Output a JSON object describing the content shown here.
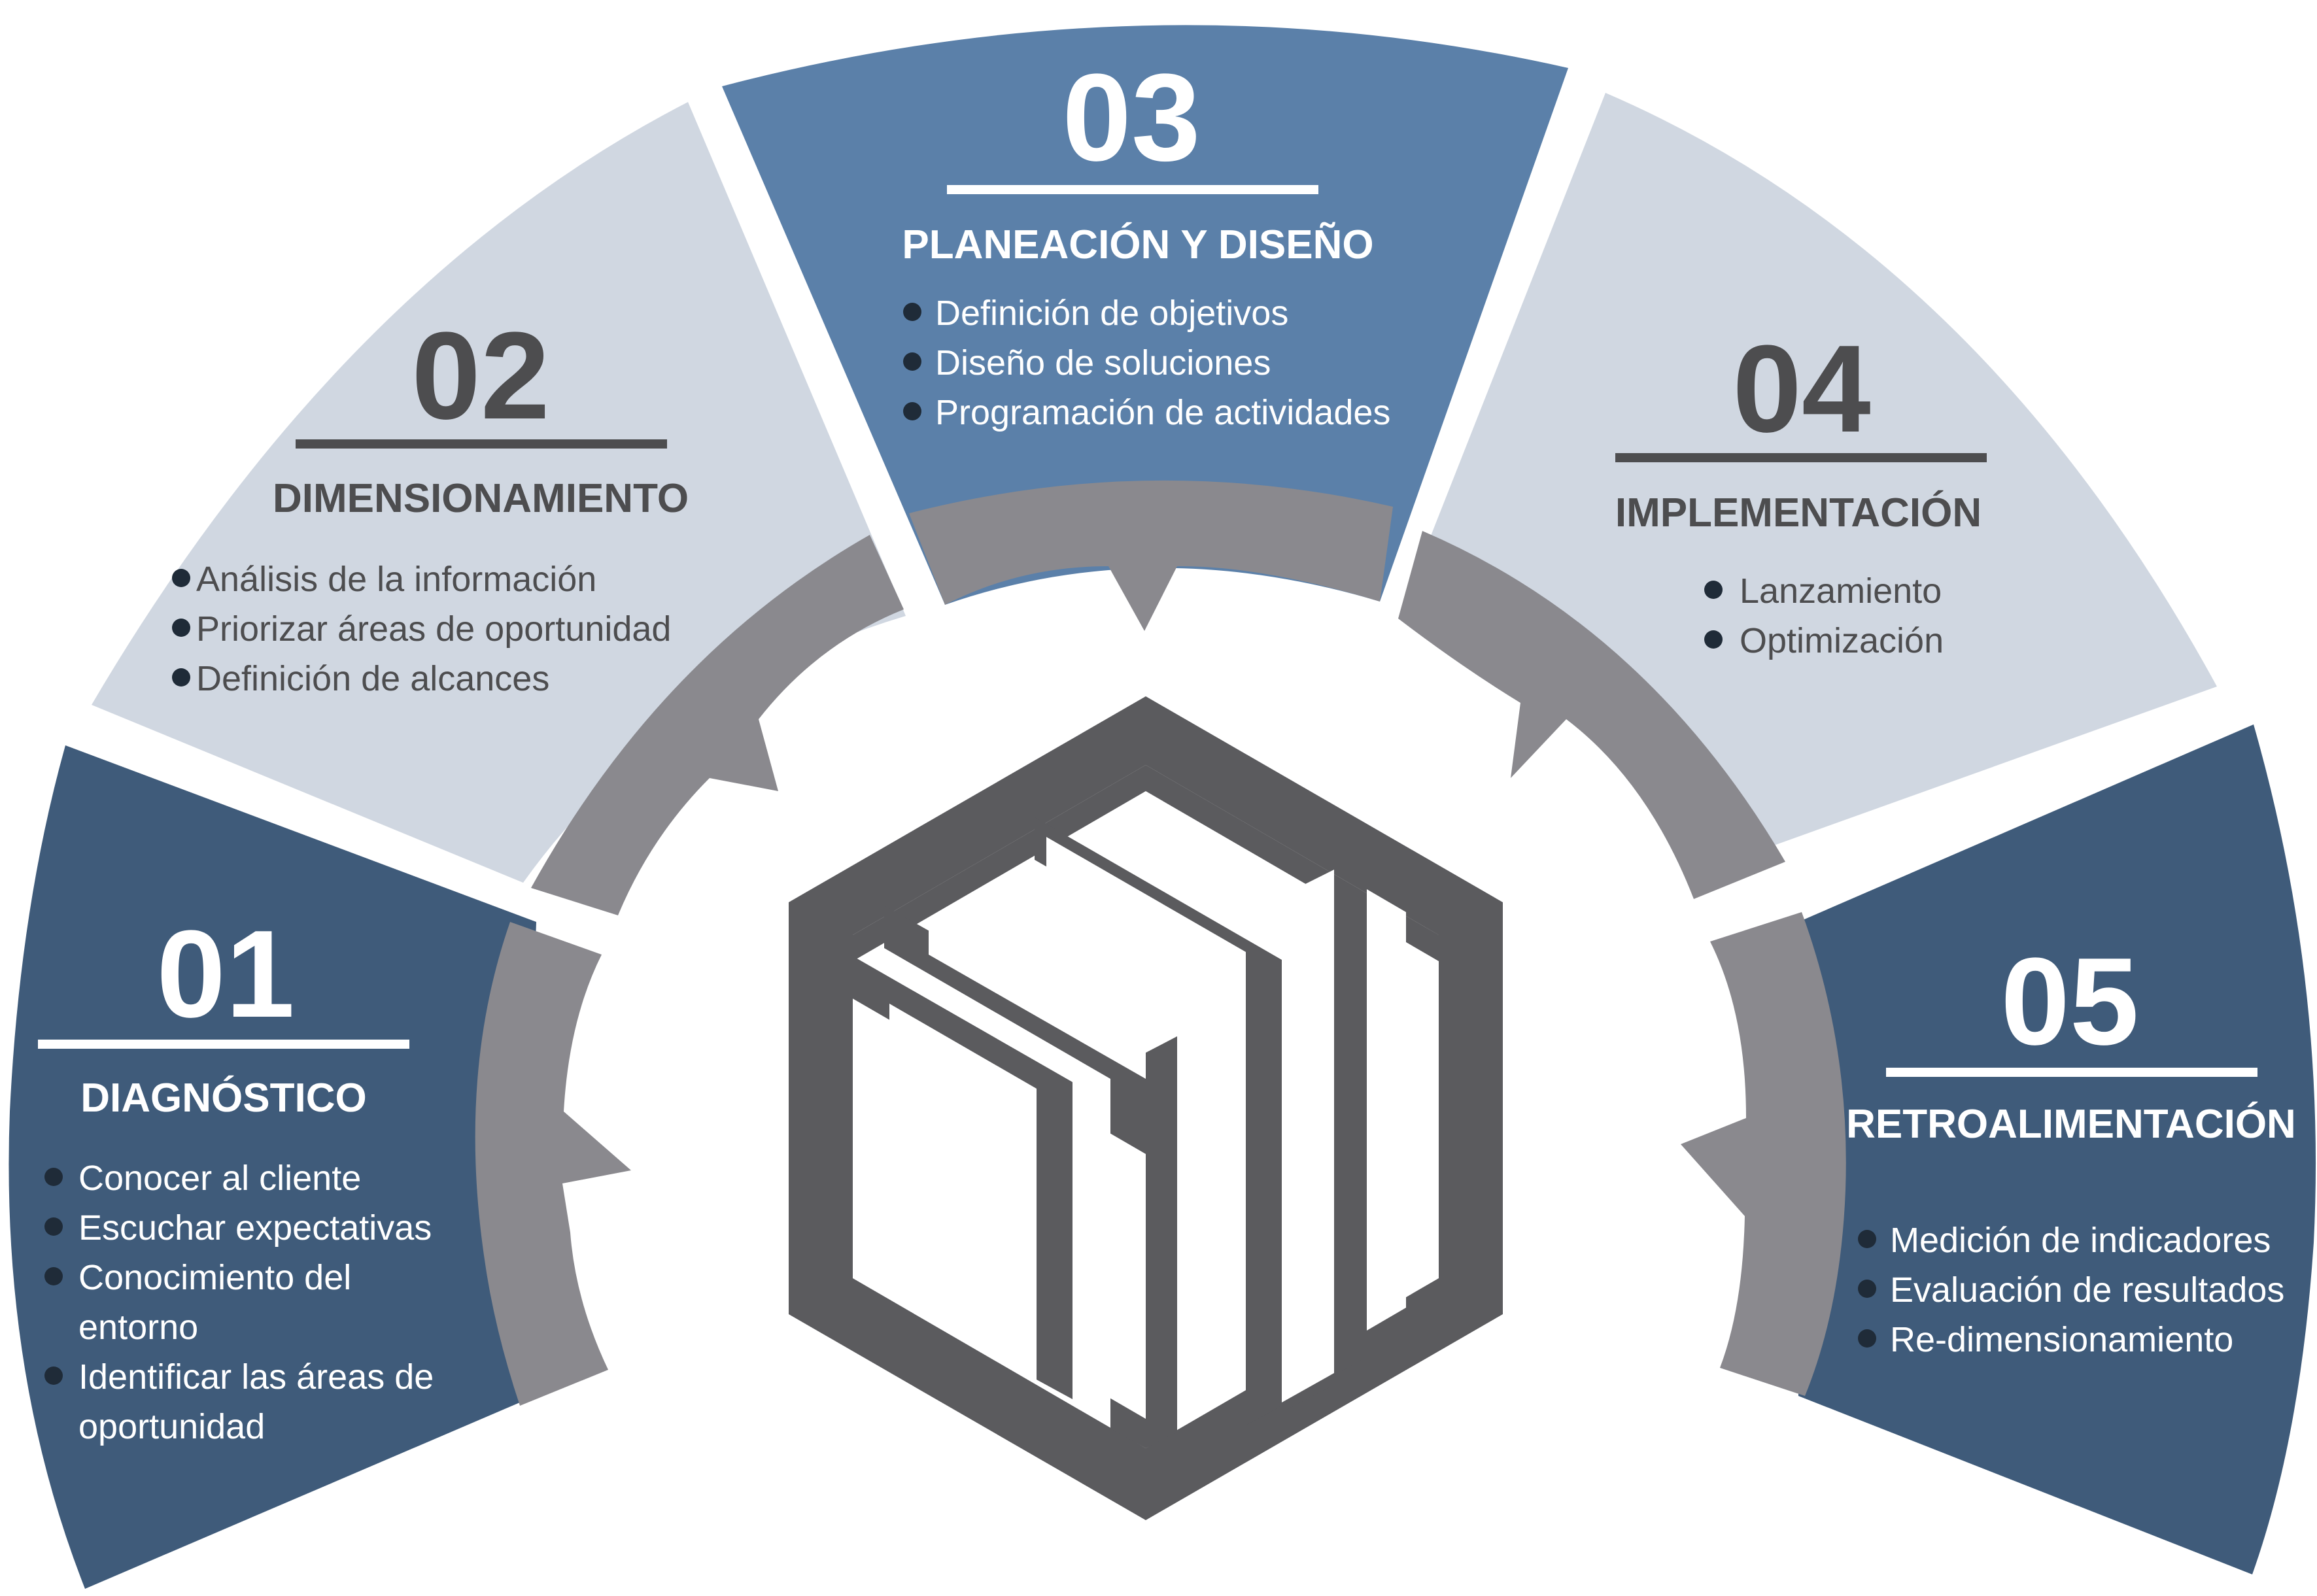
{
  "colors": {
    "dark_blue": "#3f5b7a",
    "mid_blue": "#5b80a9",
    "light_gray_blue": "#d0d7e1",
    "ring_gray": "#8a898e",
    "logo_gray": "#5b5b5e",
    "dark_text": "#4d4d4f",
    "light_text": "#ffffff"
  },
  "icons": {
    "center_logo": "hexagon-cube-logo-icon",
    "bullet": "circle-bullet-icon",
    "arrow": "ring-arrow-notch-icon"
  },
  "steps": [
    {
      "number": "01",
      "title": "DIAGNÓSTICO",
      "items": [
        "Conocer al cliente",
        "Escuchar expectativas",
        "Conocimiento del",
        "entorno",
        "Identificar las áreas de",
        "oportunidad"
      ]
    },
    {
      "number": "02",
      "title": "DIMENSIONAMIENTO",
      "items": [
        "Análisis de la información",
        "Priorizar áreas de oportunidad",
        "Definición de alcances"
      ]
    },
    {
      "number": "03",
      "title": "PLANEACIÓN Y DISEÑO",
      "items": [
        "Definición de objetivos",
        "Diseño de soluciones",
        "Programación de actividades"
      ]
    },
    {
      "number": "04",
      "title": "IMPLEMENTACIÓN",
      "items": [
        "Lanzamiento",
        "Optimización"
      ]
    },
    {
      "number": "05",
      "title": "RETROALIMENTACIÓN",
      "items": [
        "Medición de indicadores",
        "Evaluación de resultados",
        "Re-dimensionamiento"
      ]
    }
  ]
}
